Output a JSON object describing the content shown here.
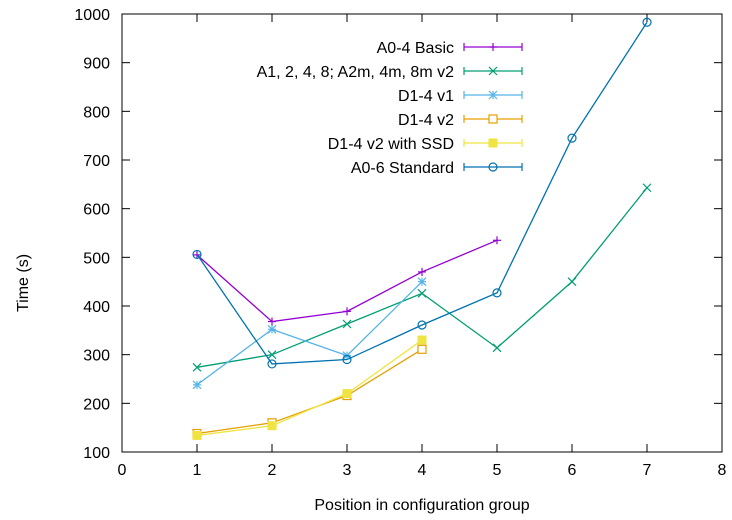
{
  "chart_data": {
    "type": "line",
    "title": "",
    "xlabel": "Position in configuration group",
    "ylabel": "Time (s)",
    "xlim": [
      0,
      8
    ],
    "ylim": [
      100,
      1000
    ],
    "xticks": [
      0,
      1,
      2,
      3,
      4,
      5,
      6,
      7,
      8
    ],
    "yticks": [
      100,
      200,
      300,
      400,
      500,
      600,
      700,
      800,
      900,
      1000
    ],
    "grid": false,
    "legend_position": "top-right",
    "series": [
      {
        "name": "A0-4 Basic",
        "color": "#9400d3",
        "marker": "plus",
        "x": [
          1,
          2,
          3,
          4,
          5
        ],
        "y": [
          505,
          368,
          389,
          470,
          535
        ]
      },
      {
        "name": "A1, 2, 4, 8; A2m, 4m, 8m v2",
        "color": "#009e73",
        "marker": "cross",
        "x": [
          1,
          2,
          3,
          4,
          5,
          6,
          7
        ],
        "y": [
          274,
          300,
          363,
          426,
          314,
          450,
          643
        ]
      },
      {
        "name": "D1-4 v1",
        "color": "#56b4e9",
        "marker": "star",
        "x": [
          1,
          2,
          3,
          4
        ],
        "y": [
          238,
          352,
          298,
          450
        ]
      },
      {
        "name": "D1-4 v2",
        "color": "#e69f00",
        "marker": "square-open",
        "x": [
          1,
          2,
          3,
          4
        ],
        "y": [
          138,
          160,
          216,
          311
        ]
      },
      {
        "name": "D1-4 v2 with SSD",
        "color": "#f0e442",
        "marker": "square-filled",
        "x": [
          1,
          2,
          3,
          4
        ],
        "y": [
          134,
          154,
          220,
          330
        ]
      },
      {
        "name": "A0-6 Standard",
        "color": "#0072b2",
        "marker": "circle-open",
        "x": [
          1,
          2,
          3,
          4,
          5,
          6,
          7
        ],
        "y": [
          506,
          281,
          290,
          361,
          427,
          745,
          983
        ]
      }
    ]
  }
}
